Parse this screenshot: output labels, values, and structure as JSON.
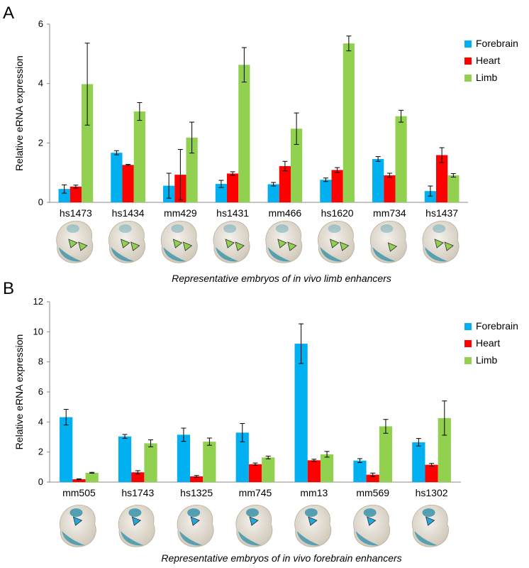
{
  "colors": {
    "forebrain": "#00B0F0",
    "heart": "#FF0000",
    "limb": "#92D050",
    "embryo_body": "#E8E2D6",
    "stain": "#2E8FA8",
    "limb_arrow": "#92D050",
    "forebrain_arrow": "#1FA8E0"
  },
  "chart_data": [
    {
      "panel": "A",
      "type": "bar",
      "ylabel": "Relative eRNA expression",
      "ylim": [
        0,
        6
      ],
      "yticks": [
        "0",
        "2",
        "4",
        "6"
      ],
      "legend_position": "top-right",
      "categories": [
        "hs1473",
        "hs1434",
        "mm429",
        "hs1431",
        "mm466",
        "hs1620",
        "mm734",
        "hs1437"
      ],
      "series": [
        {
          "name": "Forebrain",
          "values": [
            0.45,
            1.67,
            0.56,
            0.62,
            0.61,
            0.76,
            1.46,
            0.38
          ],
          "errors": [
            0.14,
            0.07,
            0.42,
            0.12,
            0.06,
            0.06,
            0.08,
            0.17
          ]
        },
        {
          "name": "Heart",
          "values": [
            0.53,
            1.26,
            0.93,
            0.97,
            1.22,
            1.09,
            0.91,
            1.59
          ],
          "errors": [
            0.05,
            0.02,
            0.85,
            0.06,
            0.16,
            0.08,
            0.07,
            0.25
          ]
        },
        {
          "name": "Limb",
          "values": [
            3.98,
            3.06,
            2.18,
            4.63,
            2.48,
            5.35,
            2.9,
            0.91
          ],
          "errors": [
            1.38,
            0.3,
            0.52,
            0.58,
            0.53,
            0.25,
            0.2,
            0.06
          ]
        }
      ],
      "caption_prefix": "Representative embryos of ",
      "caption_italic": "in vivo",
      "caption_suffix": " limb enhancers",
      "embryo_arrows": [
        2,
        2,
        2,
        2,
        2,
        2,
        1,
        2
      ]
    },
    {
      "panel": "B",
      "type": "bar",
      "ylabel": "Relative eRNA expression",
      "ylim": [
        0,
        12
      ],
      "yticks": [
        "0",
        "2",
        "4",
        "6",
        "8",
        "10",
        "12"
      ],
      "legend_position": "top-right",
      "categories": [
        "mm505",
        "hs1743",
        "hs1325",
        "mm745",
        "mm13",
        "mm569",
        "hs1302"
      ],
      "series": [
        {
          "name": "Forebrain",
          "values": [
            4.32,
            3.04,
            3.15,
            3.29,
            9.21,
            1.43,
            2.65
          ],
          "errors": [
            0.52,
            0.13,
            0.44,
            0.61,
            1.32,
            0.13,
            0.25
          ]
        },
        {
          "name": "Heart",
          "values": [
            0.19,
            0.65,
            0.38,
            1.19,
            1.45,
            0.49,
            1.15
          ],
          "errors": [
            0.03,
            0.11,
            0.06,
            0.08,
            0.07,
            0.11,
            0.09
          ]
        },
        {
          "name": "Limb",
          "values": [
            0.62,
            2.58,
            2.69,
            1.64,
            1.85,
            3.71,
            4.26
          ],
          "errors": [
            0.03,
            0.23,
            0.24,
            0.09,
            0.19,
            0.46,
            1.14
          ]
        }
      ],
      "caption_prefix": "Representative embryos of ",
      "caption_italic": "in vivo",
      "caption_suffix": " forebrain enhancers",
      "embryo_arrows": [
        1,
        1,
        1,
        1,
        1,
        1,
        1
      ]
    }
  ]
}
